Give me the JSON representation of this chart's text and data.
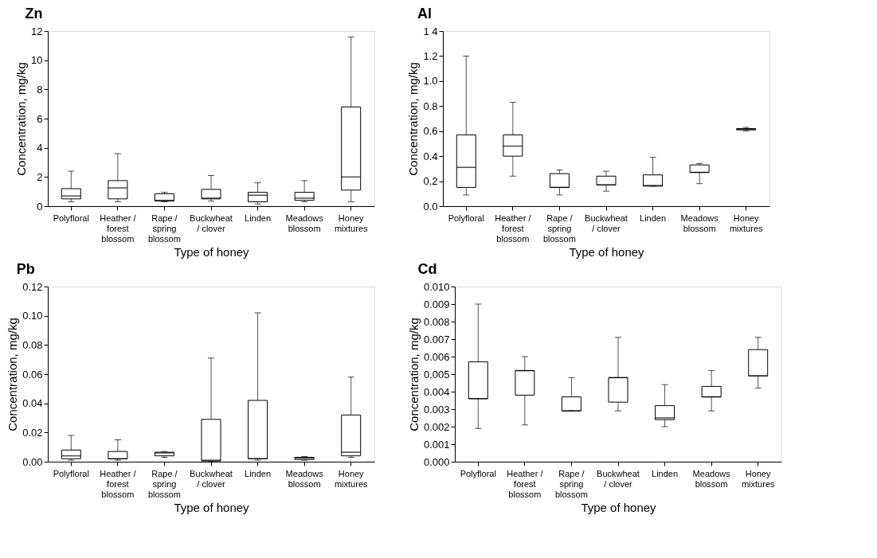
{
  "chart_data": [
    {
      "type": "box",
      "title": "Zn",
      "xlabel": "Type of honey",
      "ylabel": "Concentration, mg/kg",
      "grid": false,
      "categories": [
        "Polyfloral",
        "Heather / forest blossom",
        "Rape / spring blossom",
        "Buckwheat / clover",
        "Linden",
        "Meadows blossom",
        "Honey mixtures"
      ],
      "ylim": [
        0,
        12
      ],
      "yticks": [
        0,
        2,
        4,
        6,
        8,
        10,
        12
      ],
      "boxes": [
        {
          "low": 0.3,
          "q1": 0.5,
          "median": 0.7,
          "q3": 1.2,
          "high": 2.4
        },
        {
          "low": 0.3,
          "q1": 0.5,
          "median": 1.25,
          "q3": 1.75,
          "high": 3.6
        },
        {
          "low": 0.3,
          "q1": 0.35,
          "median": 0.4,
          "q3": 0.85,
          "high": 0.95
        },
        {
          "low": 0.35,
          "q1": 0.5,
          "median": 0.55,
          "q3": 1.15,
          "high": 2.1
        },
        {
          "low": 0.15,
          "q1": 0.3,
          "median": 0.75,
          "q3": 0.95,
          "high": 1.6
        },
        {
          "low": 0.3,
          "q1": 0.4,
          "median": 0.55,
          "q3": 0.95,
          "high": 1.75
        },
        {
          "low": 0.3,
          "q1": 1.1,
          "median": 2.0,
          "q3": 6.8,
          "high": 11.6
        }
      ]
    },
    {
      "type": "box",
      "title": "Al",
      "xlabel": "Type of honey",
      "ylabel": "Concentration, mg/kg",
      "grid": false,
      "categories": [
        "Polyfloral",
        "Heather / forest blossom",
        "Rape / spring blossom",
        "Buckwheat / clover",
        "Linden",
        "Meadows blossom",
        "Honey mixtures"
      ],
      "ylim": [
        0,
        1.4
      ],
      "yticks": [
        {
          "value": 0,
          "label": "0.0"
        },
        {
          "value": 0.2,
          "label": "0.2"
        },
        {
          "value": 0.4,
          "label": "0.4"
        },
        {
          "value": 0.6,
          "label": "0.6"
        },
        {
          "value": 0.8,
          "label": "0.8"
        },
        {
          "value": 1.0,
          "label": "1.0"
        },
        {
          "value": 1.2,
          "label": "1.2"
        },
        {
          "value": 1.4,
          "label": "1 4"
        }
      ],
      "boxes": [
        {
          "low": 0.09,
          "q1": 0.15,
          "median": 0.31,
          "q3": 0.57,
          "high": 1.2
        },
        {
          "low": 0.24,
          "q1": 0.4,
          "median": 0.48,
          "q3": 0.57,
          "high": 0.83
        },
        {
          "low": 0.09,
          "q1": 0.15,
          "median": 0.15,
          "q3": 0.26,
          "high": 0.29
        },
        {
          "low": 0.12,
          "q1": 0.17,
          "median": 0.17,
          "q3": 0.24,
          "high": 0.28
        },
        {
          "low": 0.16,
          "q1": 0.16,
          "median": 0.165,
          "q3": 0.25,
          "high": 0.39
        },
        {
          "low": 0.18,
          "q1": 0.27,
          "median": 0.27,
          "q3": 0.33,
          "high": 0.34
        },
        {
          "low": 0.6,
          "q1": 0.61,
          "median": 0.615,
          "q3": 0.62,
          "high": 0.63
        }
      ]
    },
    {
      "type": "box",
      "title": "Pb",
      "xlabel": "Type of honey",
      "ylabel": "Concentration, mg/kg",
      "grid": false,
      "categories": [
        "Polyfloral",
        "Heather / forest blossom",
        "Rape / spring blossom",
        "Buckwheat / clover",
        "Linden",
        "Meadows blossom",
        "Honey mixtures"
      ],
      "ylim": [
        0,
        0.12
      ],
      "yticks": [
        {
          "value": 0,
          "label": "0.00"
        },
        {
          "value": 0.02,
          "label": "0.02"
        },
        {
          "value": 0.04,
          "label": "0.04"
        },
        {
          "value": 0.06,
          "label": "0.06"
        },
        {
          "value": 0.08,
          "label": "0.08"
        },
        {
          "value": 0.1,
          "label": "0.10"
        },
        {
          "value": 0.12,
          "label": "0.12"
        }
      ],
      "boxes": [
        {
          "low": 0.001,
          "q1": 0.002,
          "median": 0.004,
          "q3": 0.008,
          "high": 0.018
        },
        {
          "low": 0.001,
          "q1": 0.002,
          "median": 0.002,
          "q3": 0.007,
          "high": 0.015
        },
        {
          "low": 0.003,
          "q1": 0.004,
          "median": 0.006,
          "q3": 0.0065,
          "high": 0.007
        },
        {
          "low": 0.0,
          "q1": 0.0005,
          "median": 0.001,
          "q3": 0.029,
          "high": 0.071
        },
        {
          "low": 0.001,
          "q1": 0.002,
          "median": 0.002,
          "q3": 0.042,
          "high": 0.102
        },
        {
          "low": 0.001,
          "q1": 0.0015,
          "median": 0.0025,
          "q3": 0.003,
          "high": 0.0035
        },
        {
          "low": 0.003,
          "q1": 0.004,
          "median": 0.0065,
          "q3": 0.032,
          "high": 0.058
        }
      ]
    },
    {
      "type": "box",
      "title": "Cd",
      "xlabel": "Type of honey",
      "ylabel": "Concentration, mg/kg",
      "grid": false,
      "categories": [
        "Polyfloral",
        "Heather / forest blossom",
        "Rape / spring blossom",
        "Buckwheat / clover",
        "Linden",
        "Meadows blossom",
        "Honey mixtures"
      ],
      "ylim": [
        0,
        0.01
      ],
      "yticks": [
        {
          "value": 0,
          "label": "0.000"
        },
        {
          "value": 0.001,
          "label": "0.001"
        },
        {
          "value": 0.002,
          "label": "0.002"
        },
        {
          "value": 0.003,
          "label": "0.003"
        },
        {
          "value": 0.004,
          "label": "0.004"
        },
        {
          "value": 0.005,
          "label": "0.005"
        },
        {
          "value": 0.006,
          "label": "0.006"
        },
        {
          "value": 0.007,
          "label": "0.007"
        },
        {
          "value": 0.008,
          "label": "0.008"
        },
        {
          "value": 0.009,
          "label": "0.009"
        },
        {
          "value": 0.01,
          "label": "0.010"
        }
      ],
      "boxes": [
        {
          "low": 0.0019,
          "q1": 0.0036,
          "median": 0.0036,
          "q3": 0.0057,
          "high": 0.009
        },
        {
          "low": 0.0021,
          "q1": 0.0038,
          "median": 0.0052,
          "q3": 0.0052,
          "high": 0.006
        },
        {
          "low": 0.0029,
          "q1": 0.0029,
          "median": 0.0029,
          "q3": 0.0037,
          "high": 0.0048
        },
        {
          "low": 0.0029,
          "q1": 0.0034,
          "median": 0.0048,
          "q3": 0.0048,
          "high": 0.0071
        },
        {
          "low": 0.002,
          "q1": 0.0024,
          "median": 0.0025,
          "q3": 0.0032,
          "high": 0.0044
        },
        {
          "low": 0.0029,
          "q1": 0.0037,
          "median": 0.0037,
          "q3": 0.0043,
          "high": 0.0052
        },
        {
          "low": 0.0042,
          "q1": 0.0049,
          "median": 0.0049,
          "q3": 0.0064,
          "high": 0.0071
        }
      ]
    }
  ]
}
